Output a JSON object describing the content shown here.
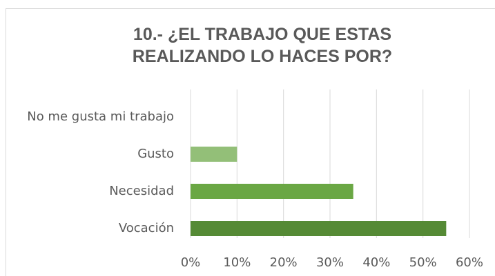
{
  "chart_data": {
    "type": "bar",
    "orientation": "horizontal",
    "title": "10.- ¿EL TRABAJO QUE ESTAS REALIZANDO LO HACES POR?",
    "categories": [
      "No me gusta mi trabajo",
      "Gusto",
      "Necesidad",
      "Vocación"
    ],
    "values": [
      0,
      10,
      35,
      55
    ],
    "colors": [
      "#a9d18e",
      "#93bf78",
      "#6aa744",
      "#558a35"
    ],
    "xlim": [
      0,
      60
    ],
    "xticks": [
      {
        "value": 0,
        "label": "0%"
      },
      {
        "value": 10,
        "label": "10%"
      },
      {
        "value": 20,
        "label": "20%"
      },
      {
        "value": 30,
        "label": "30%"
      },
      {
        "value": 40,
        "label": "40%"
      },
      {
        "value": 50,
        "label": "50%"
      },
      {
        "value": 60,
        "label": "60%"
      }
    ],
    "grid": true
  }
}
